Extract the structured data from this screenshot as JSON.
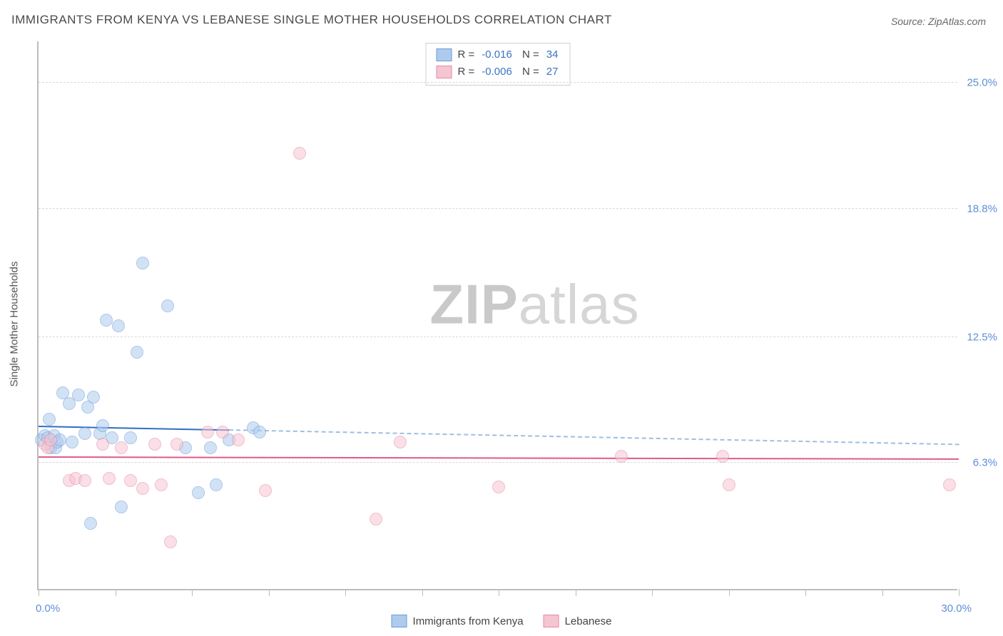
{
  "title": "IMMIGRANTS FROM KENYA VS LEBANESE SINGLE MOTHER HOUSEHOLDS CORRELATION CHART",
  "source_label": "Source: ZipAtlas.com",
  "watermark": {
    "bold": "ZIP",
    "light": "atlas"
  },
  "ylabel": "Single Mother Households",
  "chart": {
    "type": "scatter",
    "background_color": "#ffffff",
    "grid_color": "#d9d9d9",
    "axis_color": "#bdbdbd",
    "label_color": "#5b8fd6",
    "title_fontsize": 17,
    "label_fontsize": 15,
    "marker_radius": 9,
    "marker_opacity": 0.55,
    "x": {
      "min": 0.0,
      "max": 30.0,
      "min_label": "0.0%",
      "max_label": "30.0%",
      "ticks": [
        0,
        2.5,
        5,
        7.5,
        10,
        12.5,
        15,
        17.5,
        20,
        22.5,
        25,
        27.5,
        30
      ]
    },
    "y": {
      "min": 0.0,
      "max": 27.0,
      "gridlines": [
        6.3,
        12.5,
        18.8,
        25.0
      ],
      "grid_labels": [
        "6.3%",
        "12.5%",
        "18.8%",
        "25.0%"
      ]
    },
    "series": [
      {
        "name": "Immigrants from Kenya",
        "color_fill": "#aecbee",
        "color_stroke": "#6a9bd8",
        "r_value": "-0.016",
        "n_value": "34",
        "trend": {
          "y_at_xmin": 8.1,
          "y_at_xmax": 7.2,
          "solid_until_x": 6.2,
          "solid_color": "#2f6fc0",
          "dashed_color": "#9fbfe0"
        },
        "points": [
          {
            "x": 0.1,
            "y": 7.4
          },
          {
            "x": 0.2,
            "y": 7.6
          },
          {
            "x": 0.3,
            "y": 7.5
          },
          {
            "x": 0.35,
            "y": 8.4
          },
          {
            "x": 0.4,
            "y": 7.0
          },
          {
            "x": 0.5,
            "y": 7.6
          },
          {
            "x": 0.55,
            "y": 7.0
          },
          {
            "x": 0.6,
            "y": 7.3
          },
          {
            "x": 0.7,
            "y": 7.4
          },
          {
            "x": 0.8,
            "y": 9.7
          },
          {
            "x": 1.0,
            "y": 9.2
          },
          {
            "x": 1.1,
            "y": 7.3
          },
          {
            "x": 1.3,
            "y": 9.6
          },
          {
            "x": 1.5,
            "y": 7.7
          },
          {
            "x": 1.6,
            "y": 9.0
          },
          {
            "x": 1.7,
            "y": 3.3
          },
          {
            "x": 1.8,
            "y": 9.5
          },
          {
            "x": 2.0,
            "y": 7.7
          },
          {
            "x": 2.1,
            "y": 8.1
          },
          {
            "x": 2.2,
            "y": 13.3
          },
          {
            "x": 2.4,
            "y": 7.5
          },
          {
            "x": 2.6,
            "y": 13.0
          },
          {
            "x": 2.7,
            "y": 4.1
          },
          {
            "x": 3.0,
            "y": 7.5
          },
          {
            "x": 3.2,
            "y": 11.7
          },
          {
            "x": 3.4,
            "y": 16.1
          },
          {
            "x": 4.2,
            "y": 14.0
          },
          {
            "x": 4.8,
            "y": 7.0
          },
          {
            "x": 5.2,
            "y": 4.8
          },
          {
            "x": 5.6,
            "y": 7.0
          },
          {
            "x": 5.8,
            "y": 5.2
          },
          {
            "x": 6.2,
            "y": 7.4
          },
          {
            "x": 7.0,
            "y": 8.0
          },
          {
            "x": 7.2,
            "y": 7.8
          }
        ]
      },
      {
        "name": "Lebanese",
        "color_fill": "#f6c5d2",
        "color_stroke": "#e68aa5",
        "r_value": "-0.006",
        "n_value": "27",
        "trend": {
          "y_at_xmin": 6.6,
          "y_at_xmax": 6.5,
          "solid_until_x": 30.0,
          "solid_color": "#e05a8a",
          "dashed_color": "#e05a8a"
        },
        "points": [
          {
            "x": 0.2,
            "y": 7.2
          },
          {
            "x": 0.3,
            "y": 7.0
          },
          {
            "x": 0.4,
            "y": 7.4
          },
          {
            "x": 1.0,
            "y": 5.4
          },
          {
            "x": 1.2,
            "y": 5.5
          },
          {
            "x": 1.5,
            "y": 5.4
          },
          {
            "x": 2.1,
            "y": 7.2
          },
          {
            "x": 2.3,
            "y": 5.5
          },
          {
            "x": 2.7,
            "y": 7.0
          },
          {
            "x": 3.0,
            "y": 5.4
          },
          {
            "x": 3.4,
            "y": 5.0
          },
          {
            "x": 3.8,
            "y": 7.2
          },
          {
            "x": 4.0,
            "y": 5.2
          },
          {
            "x": 4.3,
            "y": 2.4
          },
          {
            "x": 4.5,
            "y": 7.2
          },
          {
            "x": 5.5,
            "y": 7.8
          },
          {
            "x": 6.0,
            "y": 7.8
          },
          {
            "x": 6.5,
            "y": 7.4
          },
          {
            "x": 7.4,
            "y": 4.9
          },
          {
            "x": 8.5,
            "y": 21.5
          },
          {
            "x": 11.0,
            "y": 3.5
          },
          {
            "x": 11.8,
            "y": 7.3
          },
          {
            "x": 15.0,
            "y": 5.1
          },
          {
            "x": 19.0,
            "y": 6.6
          },
          {
            "x": 22.3,
            "y": 6.6
          },
          {
            "x": 22.5,
            "y": 5.2
          },
          {
            "x": 29.7,
            "y": 5.2
          }
        ]
      }
    ]
  },
  "legend_bottom": [
    {
      "label": "Immigrants from Kenya",
      "fill": "#aecbee",
      "stroke": "#6a9bd8"
    },
    {
      "label": "Lebanese",
      "fill": "#f6c5d2",
      "stroke": "#e68aa5"
    }
  ]
}
